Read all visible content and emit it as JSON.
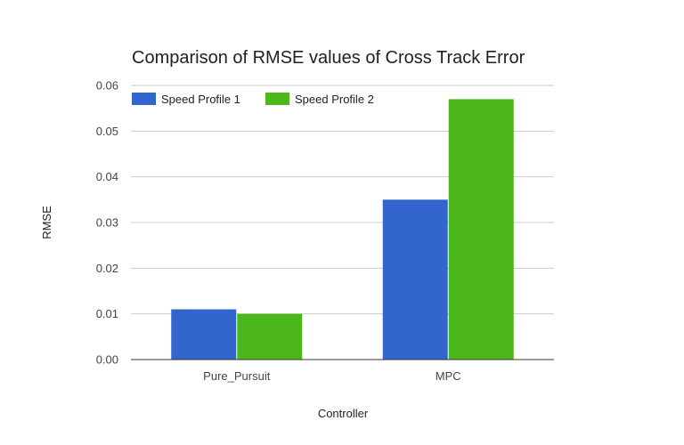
{
  "chart_data": {
    "type": "bar",
    "title": "Comparison of RMSE values of Cross Track Error",
    "xlabel": "Controller",
    "ylabel": "RMSE",
    "categories": [
      "Pure_Pursuit",
      "MPC"
    ],
    "series": [
      {
        "name": "Speed Profile 1",
        "values": [
          0.011,
          0.035
        ],
        "color": "#3366cc"
      },
      {
        "name": "Speed Profile 2",
        "values": [
          0.01,
          0.057
        ],
        "color": "#4bb71b"
      }
    ],
    "ylim": [
      0,
      0.06
    ],
    "yticks": [
      "0.00",
      "0.01",
      "0.02",
      "0.03",
      "0.04",
      "0.05",
      "0.06"
    ],
    "grid": true,
    "legend": "top-left"
  }
}
